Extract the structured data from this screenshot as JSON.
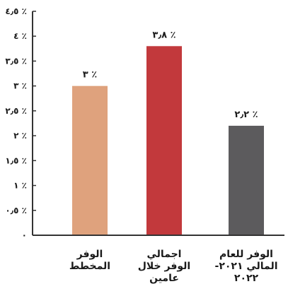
{
  "chart_data": {
    "type": "bar",
    "categories": [
      [
        "الوفر",
        "المخطط"
      ],
      [
        "اجمالي",
        "الوفر خلال",
        "عامين"
      ],
      [
        "الوفر للعام",
        "المالي ٢٠٢١-",
        "٢٠٢٢"
      ]
    ],
    "values": [
      3,
      3.8,
      2.2
    ],
    "data_labels": [
      "٣ ٪",
      "٣٫٨ ٪",
      "٢٫٢ ٪"
    ],
    "colors": [
      "#dfa27d",
      "#c2393c",
      "#5c5b5d"
    ],
    "yticks": [
      0,
      0.5,
      1,
      1.5,
      2,
      2.5,
      3,
      3.5,
      4,
      4.5
    ],
    "ytick_labels": [
      "٠",
      "٠٫٥ ٪",
      "١ ٪",
      "١٫٥ ٪",
      "٢ ٪",
      "٢٫٥ ٪",
      "٣ ٪",
      "٣٫٥ ٪",
      "٤ ٪",
      "٤٫٥ ٪"
    ],
    "ylim": [
      0,
      4.5
    ],
    "title": "",
    "xlabel": "",
    "ylabel": "",
    "grid": false,
    "legend": "none"
  }
}
